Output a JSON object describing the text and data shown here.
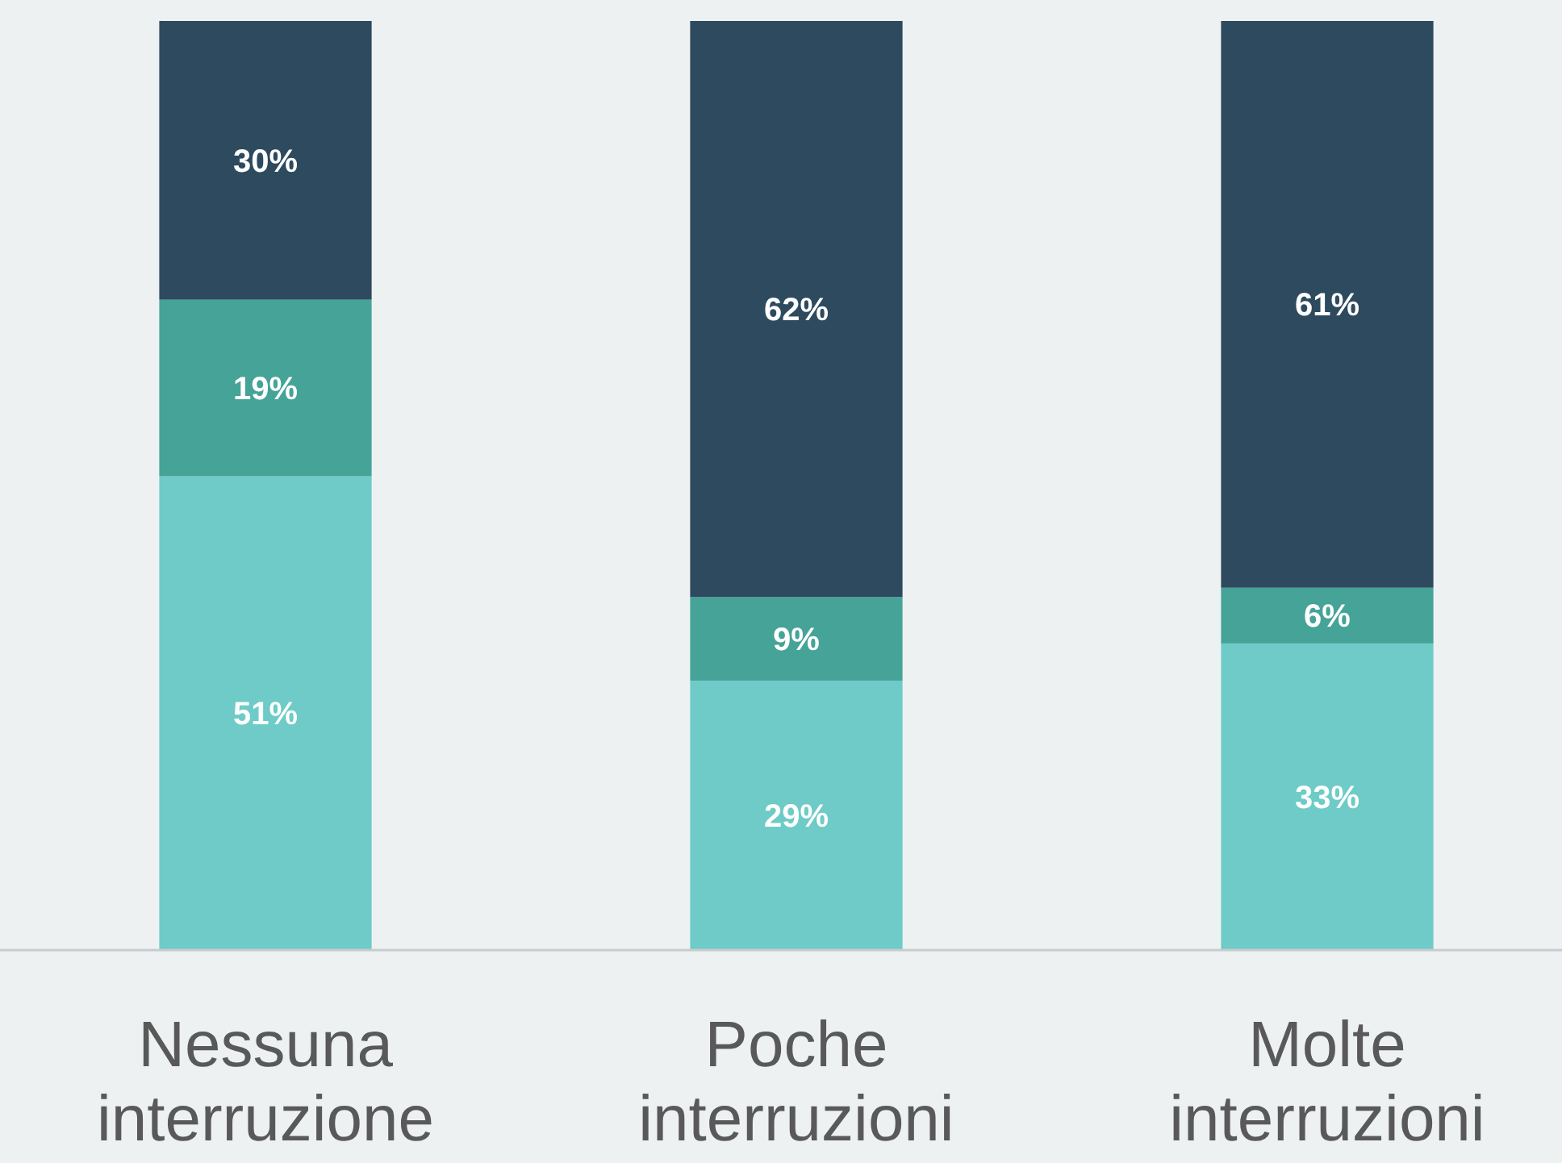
{
  "chart_data": {
    "type": "bar",
    "stacked": true,
    "categories": [
      "Nessuna interruzione",
      "Poche interruzioni",
      "Molte interruzioni"
    ],
    "ylim": [
      0,
      100
    ],
    "tick_labels": "x",
    "series": [
      {
        "color": "#6ecbc7",
        "values": [
          51,
          29,
          33
        ],
        "value_labels": [
          "51%",
          "29%",
          "33%"
        ]
      },
      {
        "color": "#45a398",
        "values": [
          19,
          9,
          6
        ],
        "value_labels": [
          "19%",
          "9%",
          "6%"
        ]
      },
      {
        "color": "#2d4a5e",
        "values": [
          30,
          62,
          61
        ],
        "value_labels": [
          "30%",
          "62%",
          "61%"
        ]
      }
    ]
  }
}
